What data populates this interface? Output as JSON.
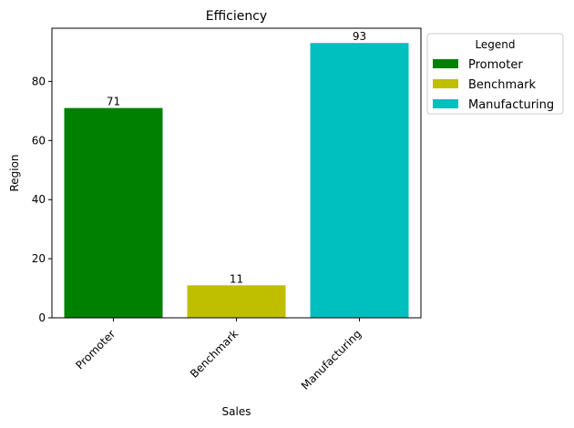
{
  "chart_data": {
    "type": "bar",
    "title": "Efficiency",
    "xlabel": "Sales",
    "ylabel": "Region",
    "categories": [
      "Promoter",
      "Benchmark",
      "Manufacturing"
    ],
    "values": [
      71,
      11,
      93
    ],
    "colors": [
      "#008000",
      "#bfbf00",
      "#00bfbf"
    ],
    "ylim": [
      0,
      98
    ],
    "yticks": [
      0,
      20,
      40,
      60,
      80
    ],
    "grid": false,
    "legend": {
      "title": "Legend",
      "placement": "outside-top-right",
      "entries": [
        "Promoter",
        "Benchmark",
        "Manufacturing"
      ]
    }
  }
}
